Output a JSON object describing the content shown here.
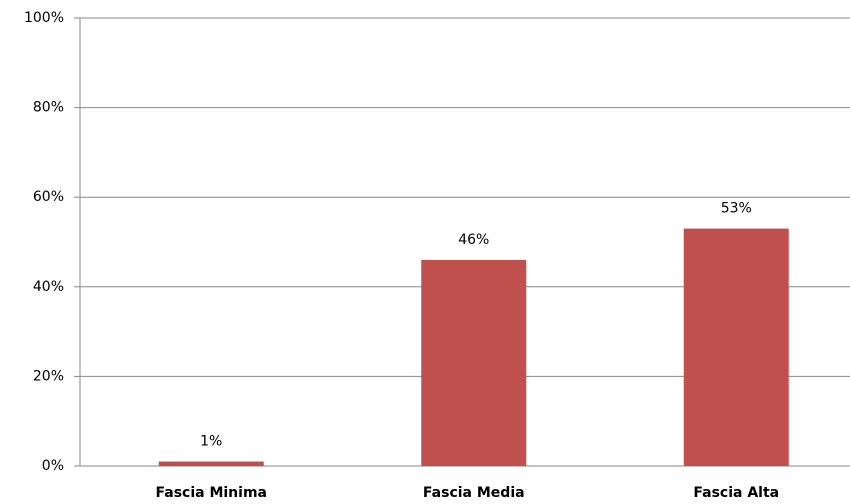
{
  "chart_data": {
    "type": "bar",
    "categories": [
      "Fascia Minima",
      "Fascia Media",
      "Fascia Alta"
    ],
    "values": [
      1,
      46,
      53
    ],
    "value_labels": [
      "1%",
      "46%",
      "53%"
    ],
    "color": "#c0504d",
    "ylim": [
      0,
      100
    ],
    "yticks": [
      {
        "value": 0,
        "label": "0%"
      },
      {
        "value": 20,
        "label": "20%"
      },
      {
        "value": 40,
        "label": "40%"
      },
      {
        "value": 60,
        "label": "60%"
      },
      {
        "value": 80,
        "label": "80%"
      },
      {
        "value": 100,
        "label": "100%"
      }
    ],
    "grid": true
  }
}
